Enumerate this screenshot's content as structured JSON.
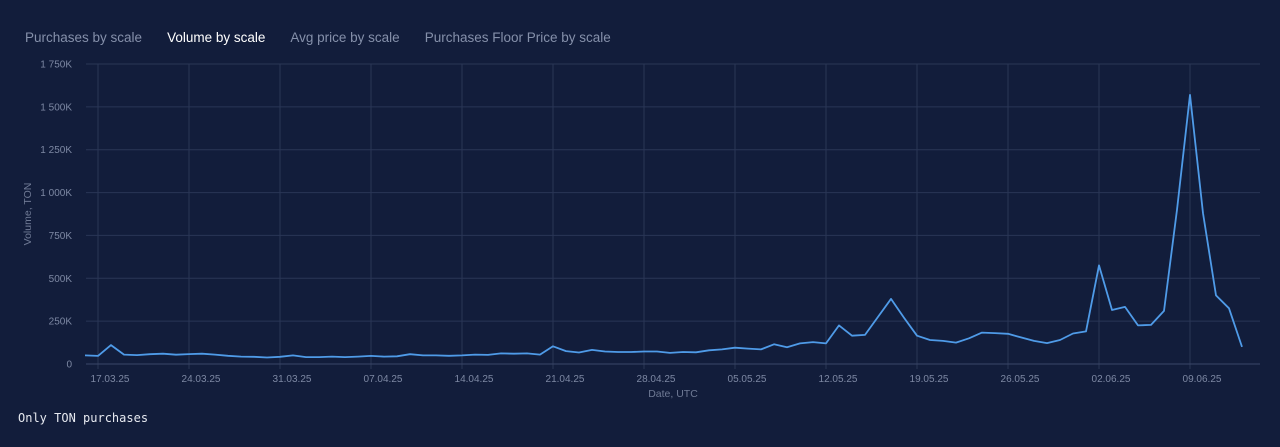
{
  "tabs": [
    {
      "label": "Purchases by scale",
      "active": false
    },
    {
      "label": "Volume by scale",
      "active": true
    },
    {
      "label": "Avg price by scale",
      "active": false
    },
    {
      "label": "Purchases Floor Price by scale",
      "active": false
    }
  ],
  "footnote": "Only TON purchases",
  "colors": {
    "background": "#121d3b",
    "line": "#4f9be8",
    "grid": "#2a3656",
    "text": "#7d88a3"
  },
  "chart_data": {
    "type": "line",
    "xlabel": "Date, UTC",
    "ylabel": "Volume, TON",
    "ylim": [
      0,
      1750000
    ],
    "yticks": [
      0,
      250000,
      500000,
      750000,
      1000000,
      1250000,
      1500000,
      1750000
    ],
    "ytick_labels": [
      "0",
      "250K",
      "500K",
      "750K",
      "1 000K",
      "1 250K",
      "1 500K",
      "1 750K"
    ],
    "x_start": "2025-03-16",
    "xtick_labels": [
      "17.03.25",
      "24.03.25",
      "31.03.25",
      "07.04.25",
      "14.04.25",
      "21.04.25",
      "28.04.25",
      "05.05.25",
      "12.05.25",
      "19.05.25",
      "26.05.25",
      "02.06.25",
      "09.06.25"
    ],
    "grid": true,
    "series": [
      {
        "values": [
          50000,
          47000,
          110000,
          55000,
          52000,
          57000,
          60000,
          54000,
          58000,
          60000,
          55000,
          48000,
          43000,
          42000,
          38000,
          42000,
          50000,
          40000,
          40000,
          43000,
          40000,
          43000,
          47000,
          43000,
          45000,
          57000,
          50000,
          50000,
          48000,
          50000,
          55000,
          53000,
          62000,
          60000,
          62000,
          55000,
          103000,
          75000,
          67000,
          82000,
          73000,
          70000,
          70000,
          73000,
          73000,
          65000,
          70000,
          68000,
          80000,
          85000,
          95000,
          90000,
          85000,
          115000,
          98000,
          120000,
          128000,
          120000,
          225000,
          165000,
          170000,
          275000,
          380000,
          270000,
          165000,
          140000,
          135000,
          125000,
          150000,
          183000,
          180000,
          176000,
          155000,
          135000,
          122000,
          140000,
          178000,
          190000,
          575000,
          315000,
          333000,
          225000,
          228000,
          310000,
          900000,
          1570000,
          880000,
          400000,
          325000,
          100000
        ]
      }
    ]
  }
}
